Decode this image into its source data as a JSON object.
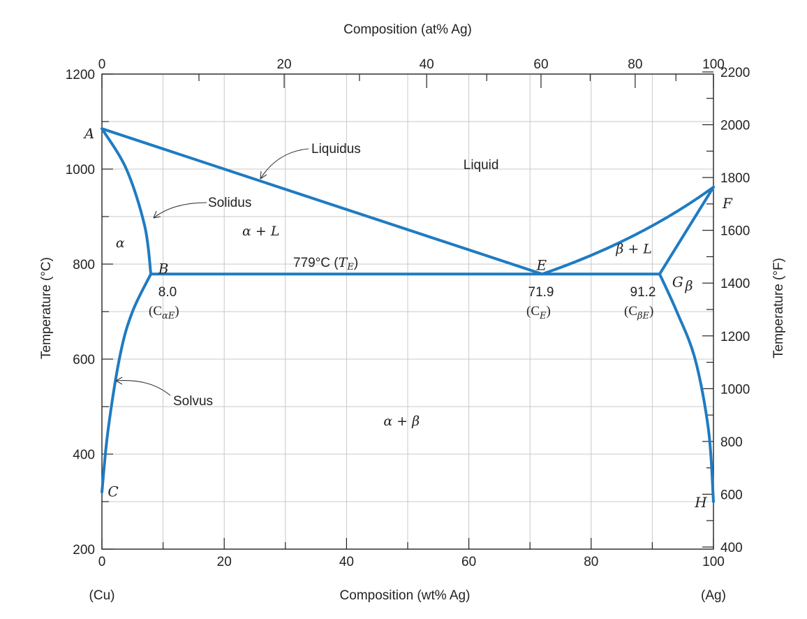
{
  "chart_data": {
    "type": "line",
    "x_axis_bottom": {
      "label": "Composition (wt% Ag)",
      "range": [
        0,
        100
      ],
      "ticks": [
        "0",
        "20",
        "40",
        "60",
        "80",
        "100"
      ],
      "end_labels": {
        "left": "(Cu)",
        "right": "(Ag)"
      }
    },
    "x_axis_top": {
      "label": "Composition (at% Ag)",
      "ticks": [
        {
          "at_pct": 0,
          "wt_pct": 0,
          "label": "0"
        },
        {
          "at_pct": 20,
          "wt_pct": 29.8,
          "label": "20"
        },
        {
          "at_pct": 40,
          "wt_pct": 53.1,
          "label": "40"
        },
        {
          "at_pct": 60,
          "wt_pct": 71.8,
          "label": "60"
        },
        {
          "at_pct": 80,
          "wt_pct": 87.2,
          "label": "80"
        },
        {
          "at_pct": 100,
          "wt_pct": 100,
          "label": "100"
        }
      ]
    },
    "y_axis_left": {
      "label": "Temperature (°C)",
      "range": [
        200,
        1200
      ],
      "ticks": [
        "200",
        "400",
        "600",
        "800",
        "1000",
        "1200"
      ]
    },
    "y_axis_right": {
      "label": "Temperature (°F)",
      "ticks": [
        {
          "F": 400,
          "label": "400"
        },
        {
          "F": 600,
          "label": "600"
        },
        {
          "F": 800,
          "label": "800"
        },
        {
          "F": 1000,
          "label": "1000"
        },
        {
          "F": 1200,
          "label": "1200"
        },
        {
          "F": 1400,
          "label": "1400"
        },
        {
          "F": 1600,
          "label": "1600"
        },
        {
          "F": 1800,
          "label": "1800"
        },
        {
          "F": 2000,
          "label": "2000"
        },
        {
          "F": 2200,
          "label": "2200"
        }
      ]
    },
    "grid": true,
    "series": [
      {
        "x": [
          0,
          72,
          100
        ],
        "y": [
          1085,
          779,
          962
        ]
      },
      {
        "x": [
          0,
          4,
          7,
          8.0
        ],
        "y": [
          1085,
          1000,
          880,
          779
        ]
      },
      {
        "x": [
          100,
          91.2
        ],
        "y": [
          962,
          779
        ]
      },
      {
        "x": [
          8.0,
          91.2
        ],
        "y": [
          779,
          779
        ]
      },
      {
        "x": [
          8.0,
          5,
          3,
          1,
          0
        ],
        "y": [
          779,
          700,
          610,
          450,
          320
        ]
      },
      {
        "x": [
          91.2,
          94,
          97,
          99.2,
          100
        ],
        "y": [
          779,
          700,
          600,
          450,
          300
        ]
      }
    ],
    "points": [
      {
        "name": "A",
        "x": 0,
        "y": 1085
      },
      {
        "name": "B",
        "x": 8.0,
        "y": 779
      },
      {
        "name": "C",
        "x": 0,
        "y": 320
      },
      {
        "name": "E",
        "x": 71.9,
        "y": 779
      },
      {
        "name": "F",
        "x": 100,
        "y": 962
      },
      {
        "name": "G",
        "x": 91.2,
        "y": 779
      },
      {
        "name": "H",
        "x": 100,
        "y": 300
      }
    ],
    "regions": [
      {
        "label": "Liquid",
        "x": 62,
        "y": 1000
      },
      {
        "label": "α + L",
        "x": 26,
        "y": 860
      },
      {
        "label": "α",
        "x": 3,
        "y": 835
      },
      {
        "label": "β + L",
        "x": 87,
        "y": 823
      },
      {
        "label": "β",
        "x": 96,
        "y": 745
      },
      {
        "label": "α + β",
        "x": 49,
        "y": 460
      }
    ],
    "curve_labels": [
      "Liquidus",
      "Solidus",
      "Solvus"
    ],
    "annotations": {
      "eutectic_temp": {
        "text": "779°C (",
        "symbol": "T",
        "sub": "E",
        "close": ")"
      },
      "alpha_E": {
        "value": "8.0",
        "symbol": "(C",
        "sub": "αE",
        "close": ")"
      },
      "eutectic_comp": {
        "value": "71.9",
        "symbol": "(C",
        "sub": "E",
        "close": ")"
      },
      "beta_E": {
        "value": "91.2",
        "symbol": "(C",
        "sub": "βE",
        "close": ")"
      }
    },
    "line_color": "#1f7bc1"
  }
}
